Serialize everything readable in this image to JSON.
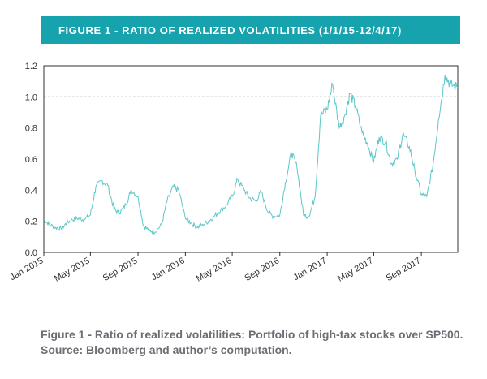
{
  "header": {
    "title": "FIGURE 1 - RATIO OF REALIZED VOLATILITIES (1/1/15-12/4/17)"
  },
  "caption": "Figure 1 - Ratio of realized volatilities: Portfolio of high-tax stocks over SP500. Source: Bloomberg and author’s computation.",
  "colors": {
    "banner": "#17a3ad",
    "line": "#5cc7c7",
    "reference": "#444444"
  },
  "chart_data": {
    "type": "line",
    "title": "",
    "xlabel": "",
    "ylabel": "",
    "ylim": [
      0.0,
      1.2
    ],
    "xlim": [
      "2015-01-01",
      "2017-12-04"
    ],
    "yticks": [
      "0.0",
      "0.2",
      "0.4",
      "0.6",
      "0.8",
      "1.0",
      "1.2"
    ],
    "xticks": [
      "Jan 2015",
      "May 2015",
      "Sep 2015",
      "Jan 2016",
      "May 2016",
      "Sep 2016",
      "Jan 2017",
      "May 2017",
      "Sep 2017"
    ],
    "reference_line": {
      "y": 1.0,
      "style": "dashed"
    },
    "grid": false,
    "series": [
      {
        "x": [
          "2015-01-01",
          "2015-01-15",
          "2015-02-01",
          "2015-02-15",
          "2015-03-01",
          "2015-03-15",
          "2015-04-01",
          "2015-04-15",
          "2015-05-01",
          "2015-05-15",
          "2015-06-01",
          "2015-06-15",
          "2015-07-01",
          "2015-07-15",
          "2015-08-01",
          "2015-08-15",
          "2015-09-01",
          "2015-09-15",
          "2015-10-01",
          "2015-10-15",
          "2015-11-01",
          "2015-11-15",
          "2015-12-01",
          "2015-12-15",
          "2016-01-01",
          "2016-01-15",
          "2016-02-01",
          "2016-02-15",
          "2016-03-01",
          "2016-03-15",
          "2016-04-01",
          "2016-04-15",
          "2016-05-01",
          "2016-05-15",
          "2016-06-01",
          "2016-06-15",
          "2016-07-01",
          "2016-07-15",
          "2016-08-01",
          "2016-08-15",
          "2016-09-01",
          "2016-09-15",
          "2016-10-01",
          "2016-10-15",
          "2016-11-01",
          "2016-11-15",
          "2016-12-01",
          "2016-12-15",
          "2017-01-01",
          "2017-01-15",
          "2017-02-01",
          "2017-02-15",
          "2017-03-01",
          "2017-03-15",
          "2017-04-01",
          "2017-04-15",
          "2017-05-01",
          "2017-05-15",
          "2017-06-01",
          "2017-06-15",
          "2017-07-01",
          "2017-07-15",
          "2017-08-01",
          "2017-08-15",
          "2017-09-01",
          "2017-09-15",
          "2017-10-01",
          "2017-10-15",
          "2017-11-01",
          "2017-11-15",
          "2017-12-04"
        ],
        "values": [
          0.21,
          0.18,
          0.16,
          0.15,
          0.19,
          0.21,
          0.22,
          0.21,
          0.24,
          0.42,
          0.46,
          0.43,
          0.28,
          0.25,
          0.31,
          0.4,
          0.36,
          0.17,
          0.14,
          0.13,
          0.18,
          0.33,
          0.42,
          0.4,
          0.22,
          0.19,
          0.16,
          0.18,
          0.2,
          0.23,
          0.27,
          0.3,
          0.36,
          0.47,
          0.4,
          0.35,
          0.33,
          0.39,
          0.26,
          0.23,
          0.24,
          0.45,
          0.64,
          0.55,
          0.24,
          0.23,
          0.36,
          0.88,
          0.92,
          1.08,
          0.8,
          0.88,
          1.02,
          0.94,
          0.77,
          0.7,
          0.58,
          0.74,
          0.71,
          0.57,
          0.6,
          0.76,
          0.68,
          0.53,
          0.37,
          0.36,
          0.56,
          0.85,
          1.14,
          1.08,
          1.06
        ]
      }
    ]
  }
}
